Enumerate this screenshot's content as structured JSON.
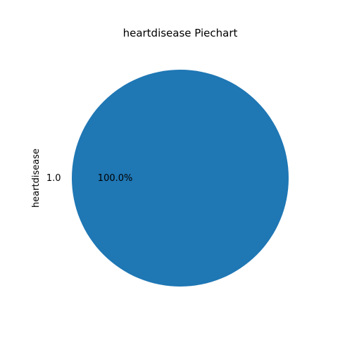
{
  "chart_data": {
    "type": "pie",
    "title": "heartdisease Piechart",
    "ylabel": "heartdisease",
    "slices": [
      {
        "label": "1.0",
        "value": 100.0,
        "pct_label": "100.0%",
        "color": "#1f77b4"
      }
    ]
  }
}
